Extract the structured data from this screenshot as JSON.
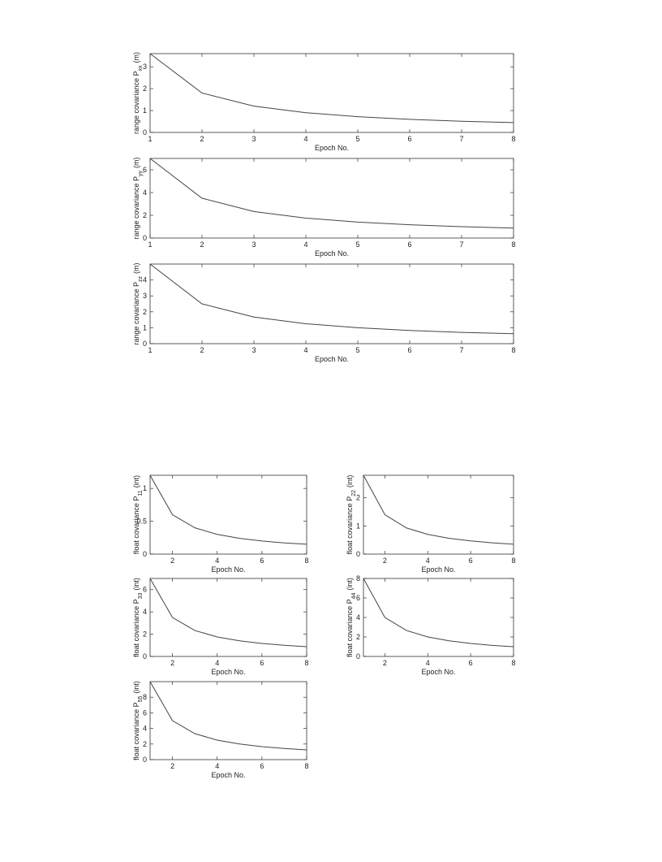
{
  "chart_data": [
    {
      "type": "line",
      "xlabel": "Epoch No.",
      "ylabel": "range covariance P",
      "ylabel_sub": "xx",
      "ylabel_unit": "(m)",
      "x": [
        1,
        2,
        3,
        4,
        5,
        6,
        7,
        8
      ],
      "values": [
        3.6,
        1.8,
        1.2,
        0.9,
        0.72,
        0.6,
        0.51,
        0.45
      ],
      "color": "#444444",
      "xlim": [
        1,
        8
      ],
      "xticks": [
        1,
        2,
        3,
        4,
        5,
        6,
        7,
        8
      ],
      "ylim": [
        0,
        3.6
      ],
      "yticks": [
        0,
        1,
        2,
        3
      ]
    },
    {
      "type": "line",
      "xlabel": "Epoch No.",
      "ylabel": "range covariance P",
      "ylabel_sub": "yy",
      "ylabel_unit": "(m)",
      "x": [
        1,
        2,
        3,
        4,
        5,
        6,
        7,
        8
      ],
      "values": [
        7,
        3.5,
        2.33,
        1.75,
        1.4,
        1.17,
        1.0,
        0.875
      ],
      "color": "#444444",
      "xlim": [
        1,
        8
      ],
      "xticks": [
        1,
        2,
        3,
        4,
        5,
        6,
        7,
        8
      ],
      "ylim": [
        0,
        7
      ],
      "yticks": [
        0,
        2,
        4,
        6
      ]
    },
    {
      "type": "line",
      "xlabel": "Epoch No.",
      "ylabel": "range covariance P",
      "ylabel_sub": "zz",
      "ylabel_unit": "(m)",
      "x": [
        1,
        2,
        3,
        4,
        5,
        6,
        7,
        8
      ],
      "values": [
        5,
        2.5,
        1.67,
        1.25,
        1.0,
        0.83,
        0.71,
        0.625
      ],
      "color": "#444444",
      "xlim": [
        1,
        8
      ],
      "xticks": [
        1,
        2,
        3,
        4,
        5,
        6,
        7,
        8
      ],
      "ylim": [
        0,
        5
      ],
      "yticks": [
        0,
        1,
        2,
        3,
        4
      ]
    },
    {
      "type": "line",
      "xlabel": "Epoch No.",
      "ylabel": "float covariance P",
      "ylabel_sub": "11",
      "ylabel_unit": "(int)",
      "x": [
        1,
        2,
        3,
        4,
        5,
        6,
        7,
        8
      ],
      "values": [
        1.2,
        0.6,
        0.4,
        0.3,
        0.24,
        0.2,
        0.17,
        0.15
      ],
      "color": "#444444",
      "xlim": [
        1,
        8
      ],
      "xticks": [
        2,
        4,
        6,
        8
      ],
      "ylim": [
        0,
        1.2
      ],
      "yticks": [
        0,
        0.5,
        1
      ]
    },
    {
      "type": "line",
      "xlabel": "Epoch No.",
      "ylabel": "float covariance P",
      "ylabel_sub": "22",
      "ylabel_unit": "(int)",
      "x": [
        1,
        2,
        3,
        4,
        5,
        6,
        7,
        8
      ],
      "values": [
        2.8,
        1.4,
        0.93,
        0.7,
        0.56,
        0.47,
        0.4,
        0.35
      ],
      "color": "#444444",
      "xlim": [
        1,
        8
      ],
      "xticks": [
        2,
        4,
        6,
        8
      ],
      "ylim": [
        0,
        2.8
      ],
      "yticks": [
        0,
        1,
        2
      ]
    },
    {
      "type": "line",
      "xlabel": "Epoch No.",
      "ylabel": "float covariance P",
      "ylabel_sub": "33",
      "ylabel_unit": "(int)",
      "x": [
        1,
        2,
        3,
        4,
        5,
        6,
        7,
        8
      ],
      "values": [
        7,
        3.5,
        2.33,
        1.75,
        1.4,
        1.17,
        1.0,
        0.875
      ],
      "color": "#444444",
      "xlim": [
        1,
        8
      ],
      "xticks": [
        2,
        4,
        6,
        8
      ],
      "ylim": [
        0,
        7
      ],
      "yticks": [
        0,
        2,
        4,
        6
      ]
    },
    {
      "type": "line",
      "xlabel": "Epoch No.",
      "ylabel": "float covariance P",
      "ylabel_sub": "44",
      "ylabel_unit": "(int)",
      "x": [
        1,
        2,
        3,
        4,
        5,
        6,
        7,
        8
      ],
      "values": [
        8,
        4,
        2.67,
        2,
        1.6,
        1.33,
        1.14,
        1.0
      ],
      "color": "#444444",
      "xlim": [
        1,
        8
      ],
      "xticks": [
        2,
        4,
        6,
        8
      ],
      "ylim": [
        0,
        8
      ],
      "yticks": [
        0,
        2,
        4,
        6,
        8
      ]
    },
    {
      "type": "line",
      "xlabel": "Epoch No.",
      "ylabel": "float covariance P",
      "ylabel_sub": "55",
      "ylabel_unit": "(int)",
      "x": [
        1,
        2,
        3,
        4,
        5,
        6,
        7,
        8
      ],
      "values": [
        10,
        5,
        3.33,
        2.5,
        2,
        1.67,
        1.43,
        1.25
      ],
      "color": "#444444",
      "xlim": [
        1,
        8
      ],
      "xticks": [
        2,
        4,
        6,
        8
      ],
      "ylim": [
        0,
        10
      ],
      "yticks": [
        0,
        2,
        4,
        6,
        8
      ]
    }
  ]
}
